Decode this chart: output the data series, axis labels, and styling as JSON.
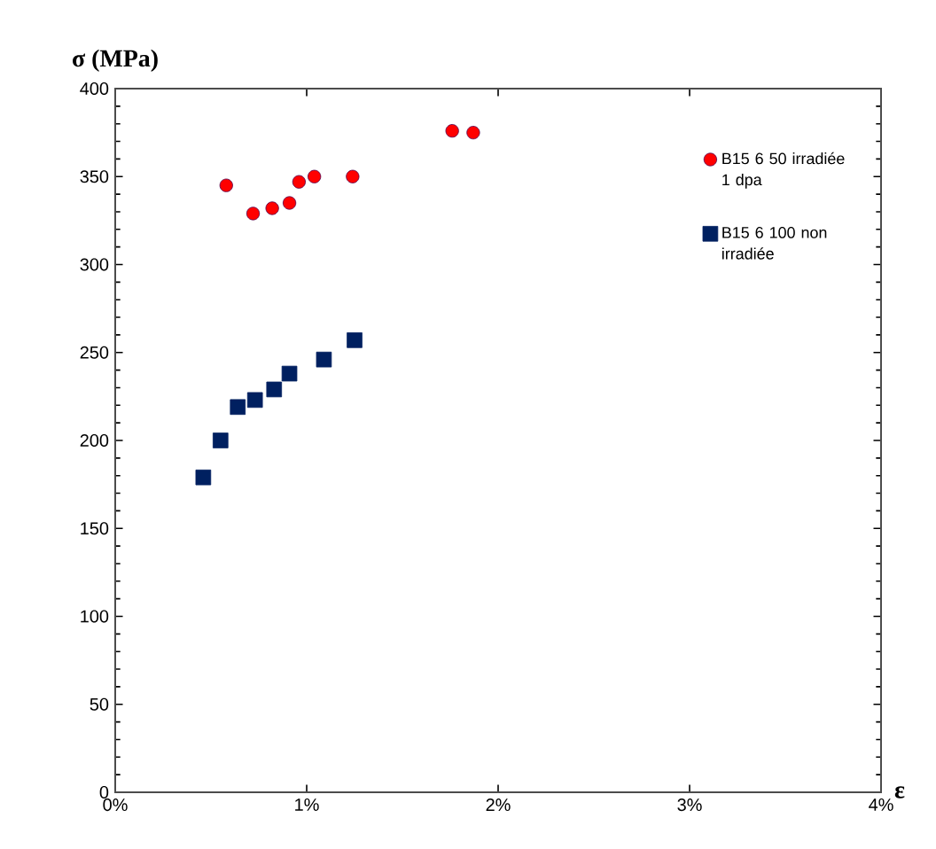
{
  "chart_data": {
    "type": "scatter",
    "xlabel": "ε",
    "ylabel": "σ (MPa)",
    "xlim": [
      0,
      4
    ],
    "xticks": [
      {
        "value": 0,
        "label": "0%"
      },
      {
        "value": 1,
        "label": "1%"
      },
      {
        "value": 2,
        "label": "2%"
      },
      {
        "value": 3,
        "label": "3%"
      },
      {
        "value": 4,
        "label": "4%"
      }
    ],
    "ylim": [
      0,
      400
    ],
    "yticks": [
      0,
      50,
      100,
      150,
      200,
      250,
      300,
      350,
      400
    ],
    "grid": false,
    "legend": "right",
    "series": [
      {
        "name": "B15 6 50 irradiée 1 dpa",
        "color": "#ff0000",
        "marker": "circle",
        "x": [
          0.58,
          0.72,
          0.82,
          0.91,
          0.96,
          1.04,
          1.24,
          1.76,
          1.87
        ],
        "values": [
          345,
          329,
          332,
          335,
          347,
          350,
          350,
          376,
          375
        ]
      },
      {
        "name": "B15 6 100 non irradiée",
        "color": "#002060",
        "marker": "square",
        "x": [
          0.46,
          0.55,
          0.64,
          0.73,
          0.83,
          0.91,
          1.09,
          1.25
        ],
        "values": [
          179,
          200,
          219,
          223,
          229,
          238,
          246,
          257
        ]
      }
    ]
  }
}
